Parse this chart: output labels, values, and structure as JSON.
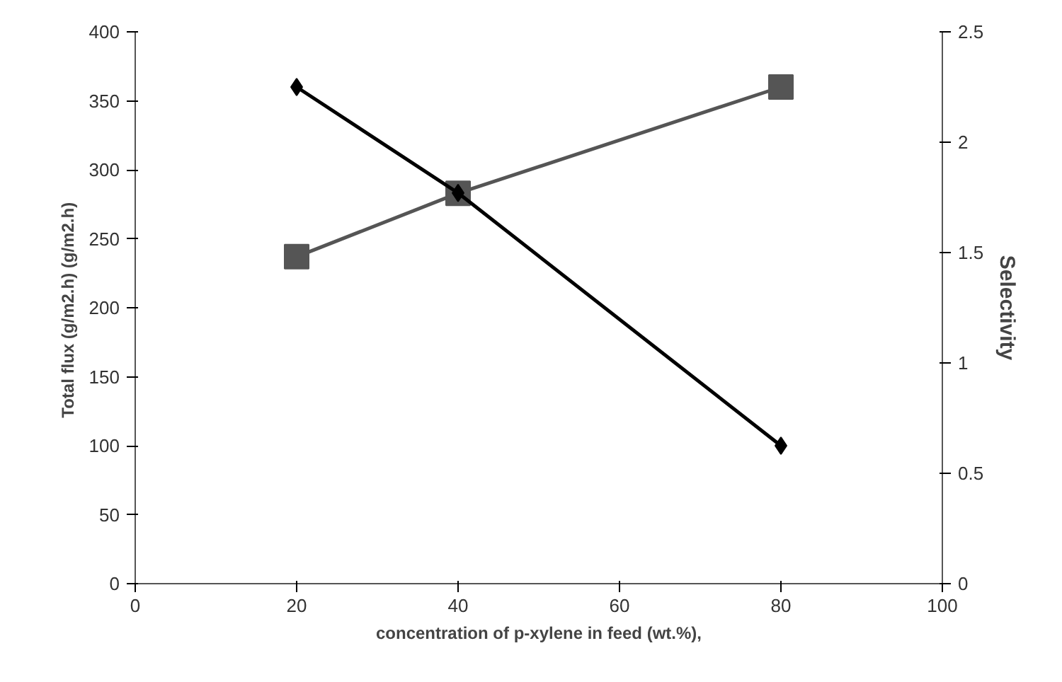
{
  "chart_data": {
    "type": "line",
    "xlabel": "concentration of p-xylene in feed (wt.%),",
    "ylabel": "Total flux (g/m2.h)  (g/m2.h)",
    "y2label": "Selectivity",
    "x": [
      20,
      40,
      80
    ],
    "series": [
      {
        "color": "#555555",
        "values": [
          237,
          283,
          360
        ],
        "marker": "square"
      },
      {
        "color": "#000000",
        "values": [
          2.25,
          1.77,
          0.625
        ],
        "axis": "y2",
        "marker": "diamond"
      }
    ],
    "xlim": [
      0,
      100
    ],
    "xticks": [
      0,
      20,
      40,
      60,
      80,
      100
    ],
    "ylim": [
      0,
      400
    ],
    "yticks": [
      0,
      50,
      100,
      150,
      200,
      250,
      300,
      350,
      400
    ],
    "y2lim": [
      0,
      2.5
    ],
    "y2ticks": [
      0,
      0.5,
      1,
      1.5,
      2,
      2.5
    ],
    "grid": false,
    "line_style": "solid"
  }
}
